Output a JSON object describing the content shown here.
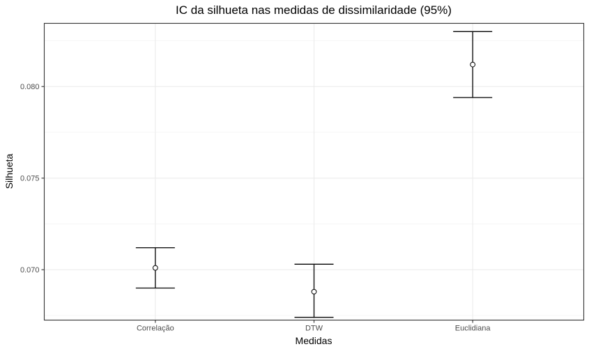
{
  "chart_data": {
    "type": "errorbar",
    "title": "IC da silhueta nas medidas de dissimilaridade (95%)",
    "xlabel": "Medidas",
    "ylabel": "Silhueta",
    "categories": [
      "Correlação",
      "DTW",
      "Euclidiana"
    ],
    "series": [
      {
        "mean": [
          0.0701,
          0.0688,
          0.0812
        ],
        "lower": [
          0.069,
          0.0674,
          0.0794
        ],
        "upper": [
          0.0712,
          0.0703,
          0.083
        ]
      }
    ],
    "ylim": [
      0.06725,
      0.08345
    ],
    "yticks": [
      0.07,
      0.075,
      0.08
    ],
    "ytick_labels": [
      "0.070",
      "0.075",
      "0.080"
    ],
    "grid": true,
    "legend": "none"
  }
}
